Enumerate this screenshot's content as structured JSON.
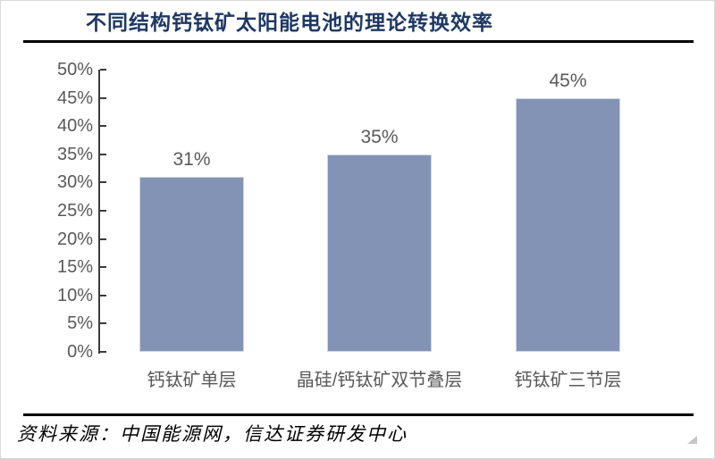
{
  "chart_data": {
    "type": "bar",
    "title": "不同结构钙钛矿太阳能电池的理论转换效率",
    "categories": [
      "钙钛矿单层",
      "晶硅/钙钛矿双节叠层",
      "钙钛矿三节层"
    ],
    "values": [
      31,
      35,
      45
    ],
    "data_labels": [
      "31%",
      "35%",
      "45%"
    ],
    "y_ticks": [
      "50%",
      "45%",
      "40%",
      "35%",
      "30%",
      "25%",
      "20%",
      "15%",
      "10%",
      "5%",
      "0%"
    ],
    "ylim": [
      0,
      50
    ],
    "xlabel": "",
    "ylabel": "",
    "grid": false,
    "legend": "none",
    "bar_color": "#8293B5",
    "bar_border_color": "#cfd7e5",
    "axis_color": "#3b3b3b",
    "label_color": "#595959",
    "title_color": "#1F3864"
  },
  "footer": {
    "source_text": "资料来源：中国能源网，信达证券研发中心"
  },
  "icons": {
    "resize_handle": "corner-resize-triangle"
  }
}
